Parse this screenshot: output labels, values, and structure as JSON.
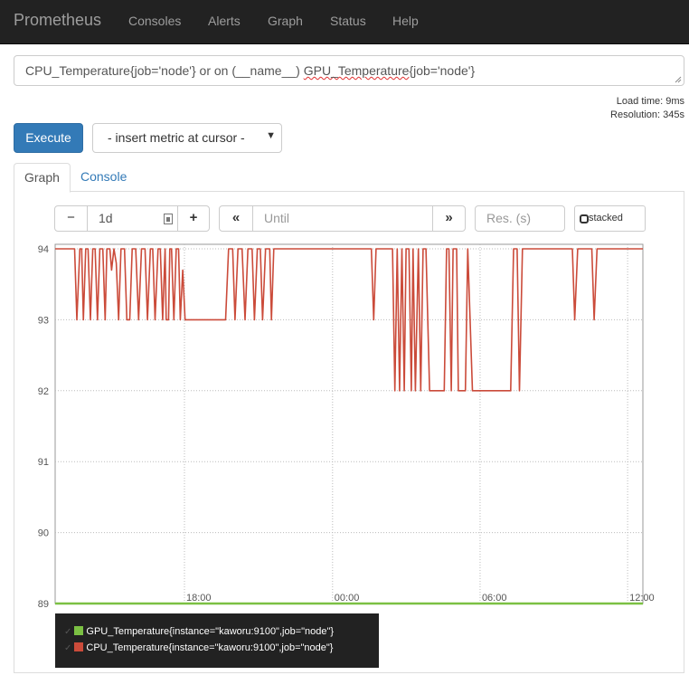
{
  "navbar": {
    "brand": "Prometheus",
    "links": [
      "Consoles",
      "Alerts",
      "Graph",
      "Status",
      "Help"
    ]
  },
  "query": {
    "expression_before": "CPU_Temperature{job='node'} or on (__name__) ",
    "expression_misspelled": "GPU_Temperature",
    "expression_after": "{job='node'}"
  },
  "meta": {
    "load_time": "Load time: 9ms",
    "resolution": "Resolution: 345s"
  },
  "actions": {
    "execute_label": "Execute",
    "metric_select": "- insert metric at cursor -"
  },
  "tabs": {
    "graph": "Graph",
    "console": "Console"
  },
  "controls": {
    "range_minus": "−",
    "range_value": "1d",
    "range_plus": "+",
    "back": "«",
    "until_placeholder": "Until",
    "forward": "»",
    "res_placeholder": "Res. (s)",
    "stacked_label": "stacked"
  },
  "colors": {
    "gpu": "#7bc043",
    "cpu": "#cb4b3a",
    "navbar": "#222222",
    "accent": "#337ab7"
  },
  "chart_data": {
    "type": "line",
    "y_ticks": [
      "94",
      "93",
      "92",
      "91",
      "90",
      "89"
    ],
    "ylim": [
      89,
      94
    ],
    "x_ticks": [
      "18:00",
      "00:00",
      "06:00",
      "12:00"
    ],
    "series": [
      {
        "name": "GPU_Temperature{instance=\"kaworu:9100\",job=\"node\"}",
        "color": "#7bc043",
        "values": [
          [
            0,
            89
          ],
          [
            1,
            89
          ]
        ]
      },
      {
        "name": "CPU_Temperature{instance=\"kaworu:9100\",job=\"node\"}",
        "color": "#cb4b3a",
        "values": [
          [
            0.0,
            94
          ],
          [
            0.033,
            94
          ],
          [
            0.037,
            93
          ],
          [
            0.042,
            94
          ],
          [
            0.045,
            94
          ],
          [
            0.048,
            93
          ],
          [
            0.052,
            94
          ],
          [
            0.056,
            94
          ],
          [
            0.06,
            93
          ],
          [
            0.064,
            94
          ],
          [
            0.068,
            94
          ],
          [
            0.072,
            93
          ],
          [
            0.076,
            94
          ],
          [
            0.081,
            94
          ],
          [
            0.085,
            93
          ],
          [
            0.088,
            94
          ],
          [
            0.093,
            94
          ],
          [
            0.096,
            93.7
          ],
          [
            0.1,
            94
          ],
          [
            0.104,
            93.8
          ],
          [
            0.108,
            93
          ],
          [
            0.112,
            94
          ],
          [
            0.118,
            94
          ],
          [
            0.122,
            93
          ],
          [
            0.127,
            93
          ],
          [
            0.131,
            94
          ],
          [
            0.137,
            94
          ],
          [
            0.142,
            93
          ],
          [
            0.147,
            94
          ],
          [
            0.153,
            94
          ],
          [
            0.157,
            93
          ],
          [
            0.162,
            94
          ],
          [
            0.166,
            94
          ],
          [
            0.17,
            93
          ],
          [
            0.175,
            94
          ],
          [
            0.179,
            94
          ],
          [
            0.183,
            93
          ],
          [
            0.187,
            94
          ],
          [
            0.189,
            93
          ],
          [
            0.193,
            93
          ],
          [
            0.195,
            94
          ],
          [
            0.198,
            94
          ],
          [
            0.202,
            93
          ],
          [
            0.206,
            94
          ],
          [
            0.21,
            94
          ],
          [
            0.213,
            93
          ],
          [
            0.217,
            93.7
          ],
          [
            0.221,
            93
          ],
          [
            0.29,
            93
          ],
          [
            0.295,
            94
          ],
          [
            0.302,
            94
          ],
          [
            0.306,
            93
          ],
          [
            0.311,
            94
          ],
          [
            0.318,
            94
          ],
          [
            0.323,
            93
          ],
          [
            0.328,
            94
          ],
          [
            0.335,
            94
          ],
          [
            0.339,
            93
          ],
          [
            0.344,
            94
          ],
          [
            0.349,
            94
          ],
          [
            0.353,
            93
          ],
          [
            0.358,
            94
          ],
          [
            0.365,
            94
          ],
          [
            0.368,
            93
          ],
          [
            0.372,
            94
          ],
          [
            0.538,
            94
          ],
          [
            0.542,
            93
          ],
          [
            0.546,
            94
          ],
          [
            0.574,
            94
          ],
          [
            0.578,
            92
          ],
          [
            0.582,
            94
          ],
          [
            0.586,
            92
          ],
          [
            0.59,
            94
          ],
          [
            0.594,
            92
          ],
          [
            0.597,
            94
          ],
          [
            0.602,
            94
          ],
          [
            0.606,
            92
          ],
          [
            0.609,
            94
          ],
          [
            0.613,
            92
          ],
          [
            0.618,
            94
          ],
          [
            0.622,
            92
          ],
          [
            0.626,
            94
          ],
          [
            0.631,
            94
          ],
          [
            0.637,
            92
          ],
          [
            0.662,
            92
          ],
          [
            0.666,
            94
          ],
          [
            0.67,
            94
          ],
          [
            0.674,
            92
          ],
          [
            0.677,
            94
          ],
          [
            0.683,
            94
          ],
          [
            0.686,
            92
          ],
          [
            0.698,
            92
          ],
          [
            0.702,
            94
          ],
          [
            0.706,
            93
          ],
          [
            0.71,
            92
          ],
          [
            0.725,
            92
          ],
          [
            0.73,
            92
          ],
          [
            0.772,
            92
          ],
          [
            0.775,
            92
          ],
          [
            0.78,
            94
          ],
          [
            0.786,
            94
          ],
          [
            0.79,
            92
          ],
          [
            0.795,
            94
          ],
          [
            0.88,
            94
          ],
          [
            0.884,
            93
          ],
          [
            0.889,
            94
          ],
          [
            0.913,
            94
          ],
          [
            0.917,
            93
          ],
          [
            0.922,
            94
          ],
          [
            1.0,
            94
          ]
        ]
      }
    ],
    "grid": true,
    "legend": "bottom-left"
  }
}
